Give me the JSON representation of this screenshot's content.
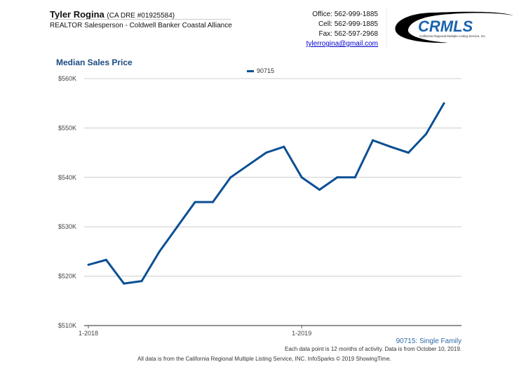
{
  "header": {
    "agent_name": "Tyler Rogina",
    "license": "(CA DRE #01925584)",
    "role": "REALTOR Salesperson - Coldwell Banker Coastal Alliance",
    "office": "Office: 562-999-1885",
    "cell": "Cell: 562-999-1885",
    "fax": "Fax: 562-597-2968",
    "email": "tylerrogina@gmail.com",
    "logo_text": "CRMLS",
    "logo_subtext": "California Regional Multiple Listing Service, Inc."
  },
  "chart_data": {
    "type": "line",
    "title": "Median Sales Price",
    "x": [
      "1-2018",
      "2-2018",
      "3-2018",
      "4-2018",
      "5-2018",
      "6-2018",
      "7-2018",
      "8-2018",
      "9-2018",
      "10-2018",
      "11-2018",
      "12-2018",
      "1-2019",
      "2-2019",
      "3-2019",
      "4-2019",
      "5-2019",
      "6-2019",
      "7-2019",
      "8-2019",
      "9-2019"
    ],
    "x_tick_labels": [
      "1-2018",
      "1-2019"
    ],
    "series": [
      {
        "name": "90715",
        "color": "#0a4f94",
        "values": [
          522300,
          523300,
          518500,
          519000,
          525000,
          530000,
          535000,
          535000,
          540000,
          542500,
          545000,
          546200,
          540000,
          537500,
          540000,
          540000,
          547500,
          546200,
          545000,
          548800,
          555000
        ]
      }
    ],
    "y_ticks": [
      510000,
      520000,
      530000,
      540000,
      550000,
      560000
    ],
    "y_tick_labels": [
      "$510K",
      "$520K",
      "$530K",
      "$540K",
      "$550K",
      "$560K"
    ],
    "ylim": [
      510000,
      560000
    ],
    "grid": true,
    "legend": "top-center"
  },
  "footer": {
    "series_note": "90715: Single Family",
    "note": "Each data point is 12 months of activity. Data is from October 10, 2019.",
    "source": "All data is from the California Regional Multiple Listing Service, INC. InfoSparks © 2019 ShowingTime."
  }
}
